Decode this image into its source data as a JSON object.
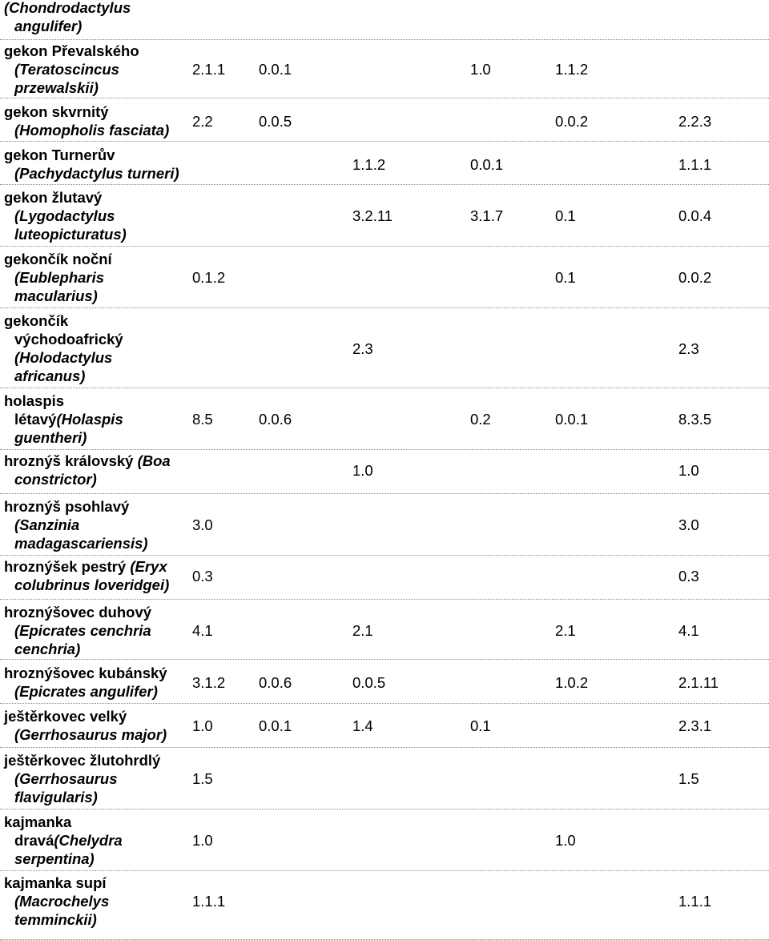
{
  "rows": [
    {
      "name_lines": [
        [
          {
            "t": "(Chondrodactylus",
            "i": true
          }
        ],
        [
          {
            "t": "angulifer)",
            "i": true
          }
        ]
      ],
      "values": [
        "",
        "",
        "",
        "",
        "",
        "",
        ""
      ]
    },
    {
      "name_lines": [
        [
          {
            "t": "gekon Převalského",
            "i": false
          }
        ],
        [
          {
            "t": "(Teratoscincus",
            "i": true
          }
        ],
        [
          {
            "t": "przewalskii)",
            "i": true
          }
        ]
      ],
      "values": [
        "2.1.1",
        "0.0.1",
        "",
        "1.0",
        "1.1.2",
        "",
        ""
      ]
    },
    {
      "name_lines": [
        [
          {
            "t": "gekon skvrnitý",
            "i": false
          }
        ],
        [
          {
            "t": "(Homopholis fasciata)",
            "i": true
          }
        ]
      ],
      "values": [
        "2.2",
        "0.0.5",
        "",
        "",
        "0.0.2",
        "2.2.3",
        ""
      ]
    },
    {
      "name_lines": [
        [
          {
            "t": "gekon Turnerův",
            "i": false
          }
        ],
        [
          {
            "t": "(Pachydactylus turneri)",
            "i": true
          }
        ]
      ],
      "values": [
        "",
        "",
        "1.1.2",
        "0.0.1",
        "",
        "1.1.1",
        ""
      ]
    },
    {
      "name_lines": [
        [
          {
            "t": "gekon žlutavý",
            "i": false
          }
        ],
        [
          {
            "t": "(Lygodactylus",
            "i": true
          }
        ],
        [
          {
            "t": "luteopicturatus)",
            "i": true
          }
        ]
      ],
      "values": [
        "",
        "",
        "3.2.11",
        "3.1.7",
        "0.1",
        "0.0.4",
        ""
      ]
    },
    {
      "name_lines": [
        [
          {
            "t": "gekončík noční",
            "i": false
          }
        ],
        [
          {
            "t": "(Eublepharis",
            "i": true
          }
        ],
        [
          {
            "t": "macularius)",
            "i": true
          }
        ]
      ],
      "values": [
        "0.1.2",
        "",
        "",
        "",
        "0.1",
        "0.0.2",
        ""
      ]
    },
    {
      "name_lines": [
        [
          {
            "t": "gekončík",
            "i": false
          }
        ],
        [
          {
            "t": "východoafrický",
            "i": false
          }
        ],
        [
          {
            "t": "(Holodactylus",
            "i": true
          }
        ],
        [
          {
            "t": "africanus)",
            "i": true
          }
        ]
      ],
      "values": [
        "",
        "",
        "2.3",
        "",
        "",
        "2.3",
        ""
      ]
    },
    {
      "name_lines": [
        [
          {
            "t": "holaspis",
            "i": false
          }
        ],
        [
          {
            "t": "létavý",
            "i": false
          },
          {
            "t": "(Holaspis",
            "i": true
          }
        ],
        [
          {
            "t": "guentheri)",
            "i": true
          }
        ]
      ],
      "values": [
        "8.5",
        "0.0.6",
        "",
        "0.2",
        "0.0.1",
        "8.3.5",
        ""
      ]
    },
    {
      "name_lines": [
        [
          {
            "t": "hroznýš královský ",
            "i": false
          },
          {
            "t": "(Boa",
            "i": true
          }
        ],
        [
          {
            "t": "constrictor)",
            "i": true
          }
        ]
      ],
      "values": [
        "",
        "",
        "1.0",
        "",
        "",
        "1.0",
        ""
      ]
    },
    {
      "name_lines": [
        [
          {
            "t": "hroznýš psohlavý",
            "i": false
          }
        ],
        [
          {
            "t": "(Sanzinia",
            "i": true
          }
        ],
        [
          {
            "t": "madagascariensis)",
            "i": true
          }
        ]
      ],
      "values": [
        "3.0",
        "",
        "",
        "",
        "",
        "3.0",
        ""
      ]
    },
    {
      "name_lines": [
        [
          {
            "t": "hroznýšek pestrý ",
            "i": false
          },
          {
            "t": "(Eryx",
            "i": true
          }
        ],
        [
          {
            "t": "colubrinus loveridgei)",
            "i": true
          }
        ]
      ],
      "values": [
        "0.3",
        "",
        "",
        "",
        "",
        "0.3",
        ""
      ]
    },
    {
      "name_lines": [
        [
          {
            "t": "hroznýšovec duhový",
            "i": false
          }
        ],
        [
          {
            "t": "(Epicrates cenchria",
            "i": true
          }
        ],
        [
          {
            "t": "cenchria)",
            "i": true
          }
        ]
      ],
      "values": [
        "4.1",
        "",
        "2.1",
        "",
        "2.1",
        "4.1",
        ""
      ]
    },
    {
      "name_lines": [
        [
          {
            "t": "hroznýšovec kubánský",
            "i": false
          }
        ],
        [
          {
            "t": "(Epicrates angulifer)",
            "i": true
          }
        ]
      ],
      "values": [
        "3.1.2",
        "0.0.6",
        "0.0.5",
        "",
        "1.0.2",
        "2.1.11",
        ""
      ]
    },
    {
      "name_lines": [
        [
          {
            "t": "ještěrkovec velký",
            "i": false
          }
        ],
        [
          {
            "t": "(Gerrhosaurus major)",
            "i": true
          }
        ]
      ],
      "values": [
        "1.0",
        "0.0.1",
        "1.4",
        "0.1",
        "",
        "2.3.1",
        ""
      ]
    },
    {
      "name_lines": [
        [
          {
            "t": "ještěrkovec žlutohrdlý",
            "i": false
          }
        ],
        [
          {
            "t": "(Gerrhosaurus",
            "i": true
          }
        ],
        [
          {
            "t": "flavigularis)",
            "i": true
          }
        ]
      ],
      "values": [
        "1.5",
        "",
        "",
        "",
        "",
        "1.5",
        ""
      ]
    },
    {
      "name_lines": [
        [
          {
            "t": "kajmanka",
            "i": false
          }
        ],
        [
          {
            "t": "dravá",
            "i": false
          },
          {
            "t": "(Chelydra",
            "i": true
          }
        ],
        [
          {
            "t": "serpentina)",
            "i": true
          }
        ]
      ],
      "values": [
        "1.0",
        "",
        "",
        "",
        "1.0",
        "",
        ""
      ]
    },
    {
      "name_lines": [
        [
          {
            "t": "kajmanka supí",
            "i": false
          }
        ],
        [
          {
            "t": "(Macrochelys",
            "i": true
          }
        ],
        [
          {
            "t": "temminckii)",
            "i": true
          }
        ]
      ],
      "values": [
        "1.1.1",
        "",
        "",
        "",
        "",
        "1.1.1",
        ""
      ]
    }
  ]
}
